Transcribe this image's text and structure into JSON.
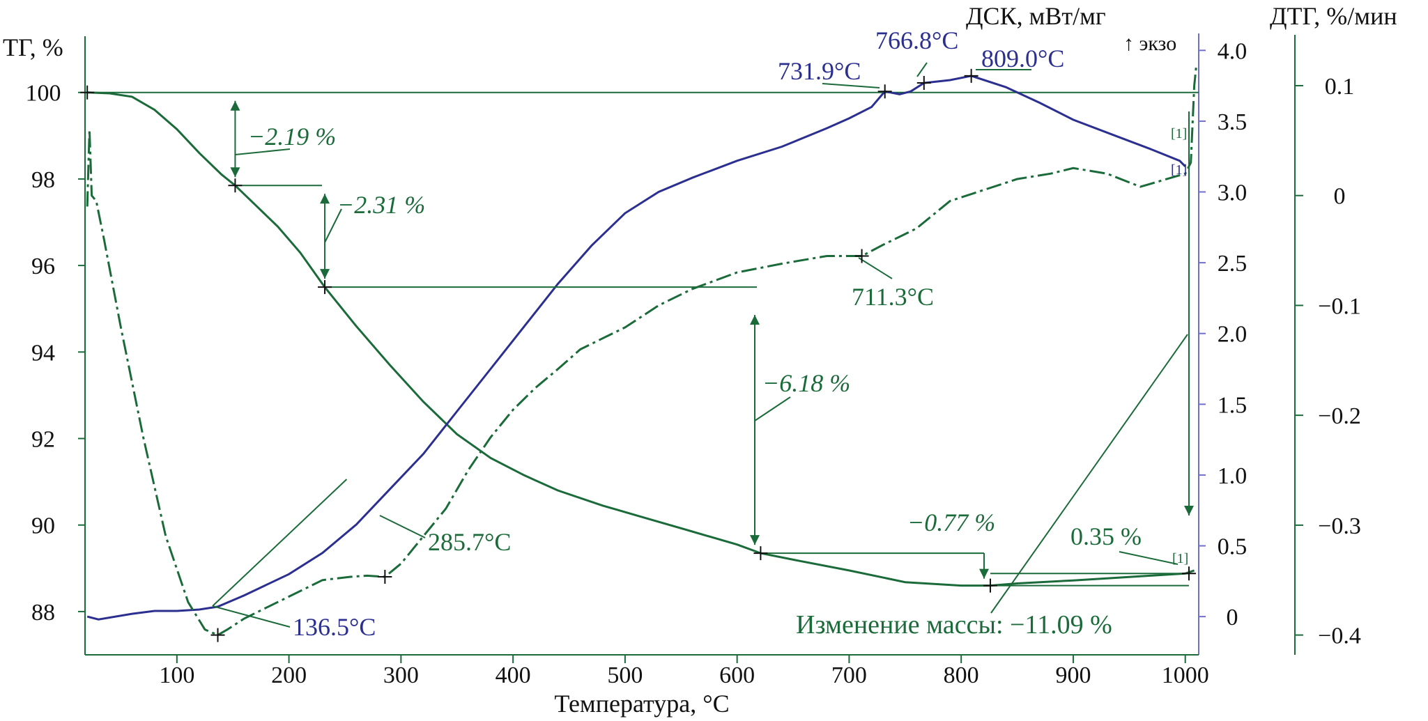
{
  "chart_data": {
    "type": "line",
    "x_axis": {
      "label": "Температура, °C",
      "range": [
        18,
        1012
      ],
      "ticks": [
        100,
        200,
        300,
        400,
        500,
        600,
        700,
        800,
        900,
        1000
      ]
    },
    "axes": {
      "tg": {
        "label": "ТГ, %",
        "range": [
          87.0,
          101.3
        ],
        "ticks": [
          "88",
          "90",
          "92",
          "94",
          "96",
          "98",
          "100"
        ],
        "color": "#1b6b3a"
      },
      "dsc": {
        "label": "ДСК, мВт/мг",
        "exo_label": "↑ экзо",
        "range": [
          -0.27,
          4.1
        ],
        "ticks": [
          "0",
          "0.5",
          "1.0",
          "1.5",
          "2.0",
          "2.5",
          "3.0",
          "3.5",
          "4.0"
        ],
        "color": "#2b2f8f"
      },
      "dtg": {
        "label": "ДТГ, %/мин",
        "range": [
          -0.418,
          0.145
        ],
        "ticks": [
          "−0.4",
          "−0.3",
          "−0.2",
          "−0.1",
          "0",
          "0.1"
        ],
        "color": "#1b6b3a"
      }
    },
    "series": [
      {
        "name": "TG",
        "axis": "tg",
        "color": "#1b6b3a",
        "style": "solid",
        "points": [
          [
            20,
            100.0
          ],
          [
            40,
            99.98
          ],
          [
            60,
            99.9
          ],
          [
            80,
            99.6
          ],
          [
            100,
            99.15
          ],
          [
            120,
            98.6
          ],
          [
            140,
            98.1
          ],
          [
            152,
            97.85
          ],
          [
            170,
            97.4
          ],
          [
            190,
            96.9
          ],
          [
            210,
            96.3
          ],
          [
            232,
            95.5
          ],
          [
            260,
            94.6
          ],
          [
            290,
            93.7
          ],
          [
            320,
            92.85
          ],
          [
            350,
            92.1
          ],
          [
            380,
            91.55
          ],
          [
            410,
            91.15
          ],
          [
            440,
            90.8
          ],
          [
            480,
            90.45
          ],
          [
            520,
            90.15
          ],
          [
            560,
            89.85
          ],
          [
            600,
            89.55
          ],
          [
            621,
            89.35
          ],
          [
            650,
            89.2
          ],
          [
            700,
            88.95
          ],
          [
            750,
            88.68
          ],
          [
            800,
            88.6
          ],
          [
            826,
            88.6
          ],
          [
            850,
            88.65
          ],
          [
            900,
            88.72
          ],
          [
            950,
            88.8
          ],
          [
            1000,
            88.88
          ],
          [
            1008,
            88.95
          ]
        ]
      },
      {
        "name": "DSC",
        "axis": "dsc",
        "color": "#2b2f8f",
        "style": "solid",
        "points": [
          [
            20,
            0.0
          ],
          [
            30,
            -0.02
          ],
          [
            60,
            0.02
          ],
          [
            80,
            0.04
          ],
          [
            100,
            0.04
          ],
          [
            120,
            0.05
          ],
          [
            136.5,
            0.07
          ],
          [
            160,
            0.15
          ],
          [
            200,
            0.3
          ],
          [
            230,
            0.45
          ],
          [
            260,
            0.65
          ],
          [
            290,
            0.9
          ],
          [
            320,
            1.15
          ],
          [
            350,
            1.45
          ],
          [
            380,
            1.75
          ],
          [
            410,
            2.05
          ],
          [
            440,
            2.35
          ],
          [
            470,
            2.62
          ],
          [
            500,
            2.85
          ],
          [
            530,
            3.0
          ],
          [
            560,
            3.1
          ],
          [
            600,
            3.22
          ],
          [
            640,
            3.32
          ],
          [
            680,
            3.45
          ],
          [
            700,
            3.52
          ],
          [
            720,
            3.6
          ],
          [
            731.9,
            3.71
          ],
          [
            745,
            3.69
          ],
          [
            755,
            3.71
          ],
          [
            766.8,
            3.77
          ],
          [
            790,
            3.79
          ],
          [
            809.0,
            3.82
          ],
          [
            840,
            3.74
          ],
          [
            870,
            3.63
          ],
          [
            900,
            3.51
          ],
          [
            940,
            3.39
          ],
          [
            970,
            3.3
          ],
          [
            995,
            3.22
          ],
          [
            1000,
            3.18
          ]
        ]
      },
      {
        "name": "DTG",
        "axis": "dtg",
        "color": "#1b6b3a",
        "style": "dashdot",
        "points": [
          [
            20,
            -0.01
          ],
          [
            22,
            0.06
          ],
          [
            24,
            0.0
          ],
          [
            28,
            -0.005
          ],
          [
            35,
            -0.04
          ],
          [
            50,
            -0.12
          ],
          [
            70,
            -0.22
          ],
          [
            90,
            -0.31
          ],
          [
            110,
            -0.37
          ],
          [
            125,
            -0.395
          ],
          [
            136.5,
            -0.4
          ],
          [
            145,
            -0.395
          ],
          [
            160,
            -0.385
          ],
          [
            180,
            -0.375
          ],
          [
            200,
            -0.365
          ],
          [
            230,
            -0.35
          ],
          [
            255,
            -0.347
          ],
          [
            270,
            -0.346
          ],
          [
            285.7,
            -0.347
          ],
          [
            300,
            -0.335
          ],
          [
            320,
            -0.31
          ],
          [
            340,
            -0.285
          ],
          [
            360,
            -0.25
          ],
          [
            380,
            -0.22
          ],
          [
            400,
            -0.195
          ],
          [
            420,
            -0.175
          ],
          [
            440,
            -0.158
          ],
          [
            460,
            -0.14
          ],
          [
            480,
            -0.13
          ],
          [
            500,
            -0.12
          ],
          [
            530,
            -0.1
          ],
          [
            560,
            -0.085
          ],
          [
            600,
            -0.07
          ],
          [
            640,
            -0.062
          ],
          [
            680,
            -0.055
          ],
          [
            711.3,
            -0.055
          ],
          [
            730,
            -0.045
          ],
          [
            760,
            -0.03
          ],
          [
            790,
            -0.005
          ],
          [
            820,
            0.005
          ],
          [
            850,
            0.015
          ],
          [
            880,
            0.02
          ],
          [
            900,
            0.025
          ],
          [
            930,
            0.02
          ],
          [
            960,
            0.008
          ],
          [
            1000,
            0.02
          ],
          [
            1005,
            0.03
          ],
          [
            1008,
            0.1
          ],
          [
            1010,
            0.12
          ]
        ]
      }
    ],
    "annotations": {
      "tg_steps": [
        "−2.19 %",
        "−2.31 %",
        "−6.18 %",
        "−0.77 %",
        "0.35 %"
      ],
      "total": "Изменение массы:  −11.09 %",
      "dsc_peaks": [
        "136.5°C",
        "731.9°C",
        "766.8°C",
        "809.0°C"
      ],
      "dtg_peaks": [
        "285.7°C",
        "711.3°C"
      ],
      "markers": [
        "[1]",
        "[1]",
        "[1]"
      ]
    }
  }
}
